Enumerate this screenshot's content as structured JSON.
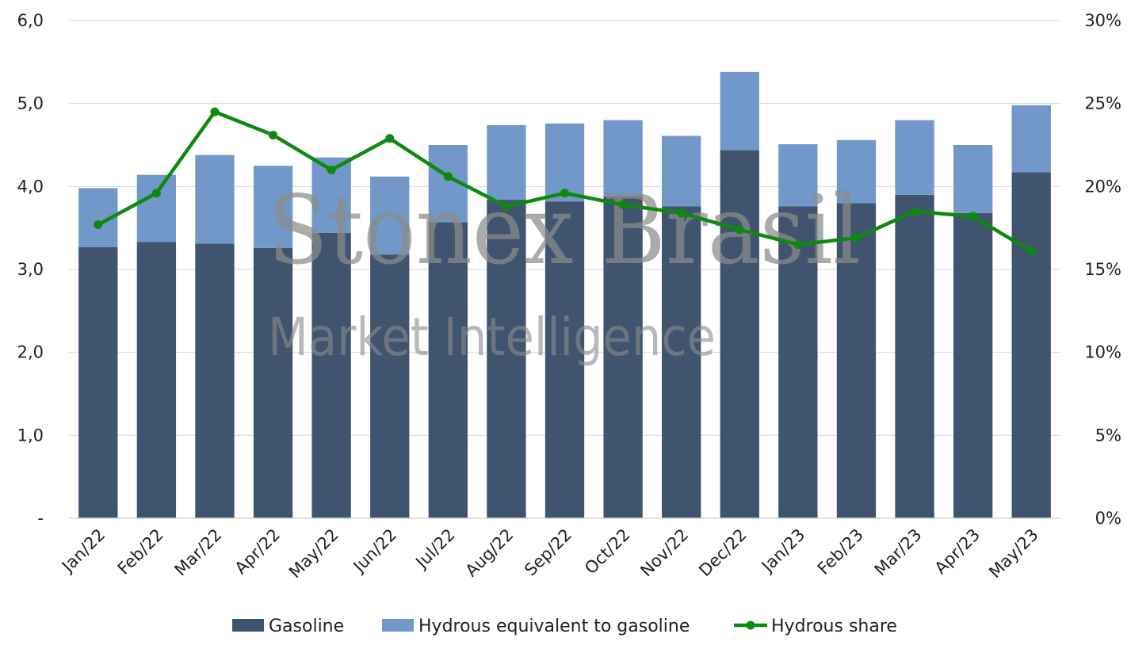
{
  "watermark": {
    "line1": "Stonex Brasil",
    "line2": "Market Intelligence"
  },
  "chart_data": {
    "type": "bar",
    "stacked": true,
    "categories": [
      "Jan/22",
      "Feb/22",
      "Mar/22",
      "Apr/22",
      "May/22",
      "Jun/22",
      "Jul/22",
      "Aug/22",
      "Sep/22",
      "Oct/22",
      "Nov/22",
      "Dec/22",
      "Jan/23",
      "Feb/23",
      "Mar/23",
      "Apr/23",
      "May/23"
    ],
    "series": [
      {
        "name": "Gasoline",
        "type": "bar",
        "axis": "left",
        "color": "#40546f",
        "values": [
          3.27,
          3.33,
          3.31,
          3.26,
          3.44,
          3.18,
          3.57,
          3.84,
          3.82,
          3.88,
          3.76,
          4.44,
          3.76,
          3.8,
          3.9,
          3.68,
          4.17
        ]
      },
      {
        "name": "Hydrous equivalent to gasoline",
        "type": "bar",
        "axis": "left",
        "color": "#7198c8",
        "values": [
          0.71,
          0.81,
          1.07,
          0.99,
          0.91,
          0.94,
          0.93,
          0.9,
          0.94,
          0.92,
          0.85,
          0.94,
          0.75,
          0.76,
          0.9,
          0.82,
          0.81
        ]
      },
      {
        "name": "Hydrous share",
        "type": "line",
        "axis": "right",
        "color": "#0d8a0d",
        "values": [
          17.7,
          19.6,
          24.5,
          23.1,
          21.0,
          22.9,
          20.6,
          18.8,
          19.6,
          18.9,
          18.4,
          17.4,
          16.5,
          16.9,
          18.5,
          18.2,
          16.1
        ]
      }
    ],
    "yAxisLeft": {
      "min": 0,
      "max": 6,
      "ticks": [
        "-",
        "1,0",
        "2,0",
        "3,0",
        "4,0",
        "5,0",
        "6,0"
      ]
    },
    "yAxisRight": {
      "min": 0,
      "max": 30,
      "ticks": [
        "0%",
        "5%",
        "10%",
        "15%",
        "20%",
        "25%",
        "30%"
      ]
    },
    "grid": true,
    "legend": "bottom"
  }
}
